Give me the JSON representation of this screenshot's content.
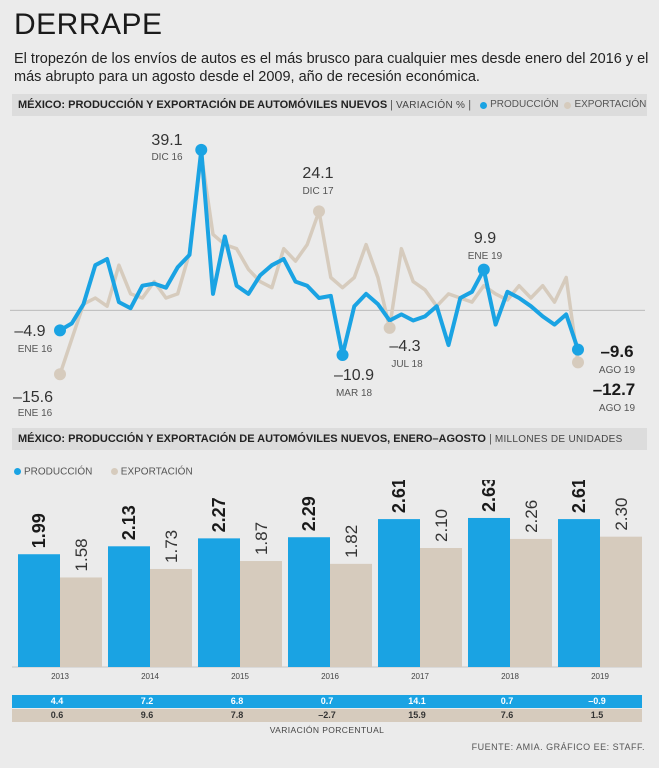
{
  "header": {
    "title": "DERRAPE",
    "subtitle": "El tropezón de los envíos de autos es el más brusco para cualquier mes desde enero del 2016 y el más abrupto para un agosto desde el 2009, año de recesión económica."
  },
  "colors": {
    "production": "#1aa3e3",
    "export": "#d6cbbd"
  },
  "chart_data": [
    {
      "type": "line",
      "title": "MÉXICO: PRODUCCIÓN Y EXPORTACIÓN DE AUTOMÓVILES NUEVOS",
      "unit": "VARIACIÓN %",
      "legend": [
        "PRODUCCIÓN",
        "EXPORTACIÓN"
      ],
      "ylim": [
        -17,
        42
      ],
      "series": [
        {
          "name": "PRODUCCIÓN",
          "values": [
            -4.9,
            -3.2,
            1.5,
            11,
            12.5,
            2,
            0.5,
            6,
            6.5,
            5.5,
            10.5,
            13.5,
            39.1,
            4,
            18,
            6,
            4,
            8.5,
            11,
            12.5,
            7,
            6,
            3,
            3.5,
            -10.9,
            1,
            4,
            1.5,
            -2.5,
            -1,
            -2.5,
            -1.5,
            1,
            -8.5,
            3,
            4.5,
            9.9,
            -3.5,
            4.5,
            3,
            1,
            -1.5,
            -3.5,
            -1,
            -9.6
          ]
        },
        {
          "name": "EXPORTACIÓN",
          "values": [
            -15.6,
            -7,
            1.5,
            3,
            1,
            11,
            4,
            3,
            7,
            3,
            4,
            14,
            38,
            18.5,
            16,
            15,
            10,
            7,
            5.5,
            15,
            12,
            16,
            24.1,
            8,
            5.5,
            8,
            16,
            8,
            -4.3,
            15,
            7,
            5,
            1,
            4,
            3,
            2,
            6,
            4,
            2.5,
            6,
            3,
            6,
            2,
            8,
            -12.7
          ]
        }
      ],
      "annotations": [
        {
          "value": "39.1",
          "date": "DIC 16"
        },
        {
          "value": "24.1",
          "date": "DIC 17"
        },
        {
          "value": "9.9",
          "date": "ENE 19"
        },
        {
          "value": "–4.9",
          "date": "ENE 16"
        },
        {
          "value": "–15.6",
          "date": "ENE 16"
        },
        {
          "value": "–4.3",
          "date": "JUL 18"
        },
        {
          "value": "–10.9",
          "date": "MAR 18"
        },
        {
          "value": "–9.6",
          "date": "AGO 19"
        },
        {
          "value": "–12.7",
          "date": "AGO 19"
        }
      ]
    },
    {
      "type": "bar",
      "title": "MÉXICO: PRODUCCIÓN Y EXPORTACIÓN DE AUTOMÓVILES NUEVOS, ENERO–AGOSTO",
      "unit": "MILLONES DE UNIDADES",
      "legend": [
        "PRODUCCIÓN",
        "EXPORTACIÓN"
      ],
      "categories": [
        "2013",
        "2014",
        "2015",
        "2016",
        "2017",
        "2018",
        "2019"
      ],
      "ylim": [
        0,
        3.0
      ],
      "series": [
        {
          "name": "PRODUCCIÓN",
          "values": [
            1.99,
            2.13,
            2.27,
            2.29,
            2.61,
            2.63,
            2.61
          ]
        },
        {
          "name": "EXPORTACIÓN",
          "values": [
            1.58,
            1.73,
            1.87,
            1.82,
            2.1,
            2.26,
            2.3
          ]
        }
      ],
      "value_labels": {
        "production": [
          "1.99",
          "2.13",
          "2.27",
          "2.29",
          "2.61",
          "2.63",
          "2.61"
        ],
        "export": [
          "1.58",
          "1.73",
          "1.87",
          "1.82",
          "2.10",
          "2.26",
          "2.30"
        ]
      },
      "variation": {
        "production": [
          "4.4",
          "7.2",
          "6.8",
          "0.7",
          "14.1",
          "0.7",
          "–0.9"
        ],
        "export": [
          "0.6",
          "9.6",
          "7.8",
          "–2.7",
          "15.9",
          "7.6",
          "1.5"
        ],
        "label": "VARIACIÓN PORCENTUAL"
      }
    }
  ],
  "source": "FUENTE: AMIA. GRÁFICO EE: STAFF."
}
